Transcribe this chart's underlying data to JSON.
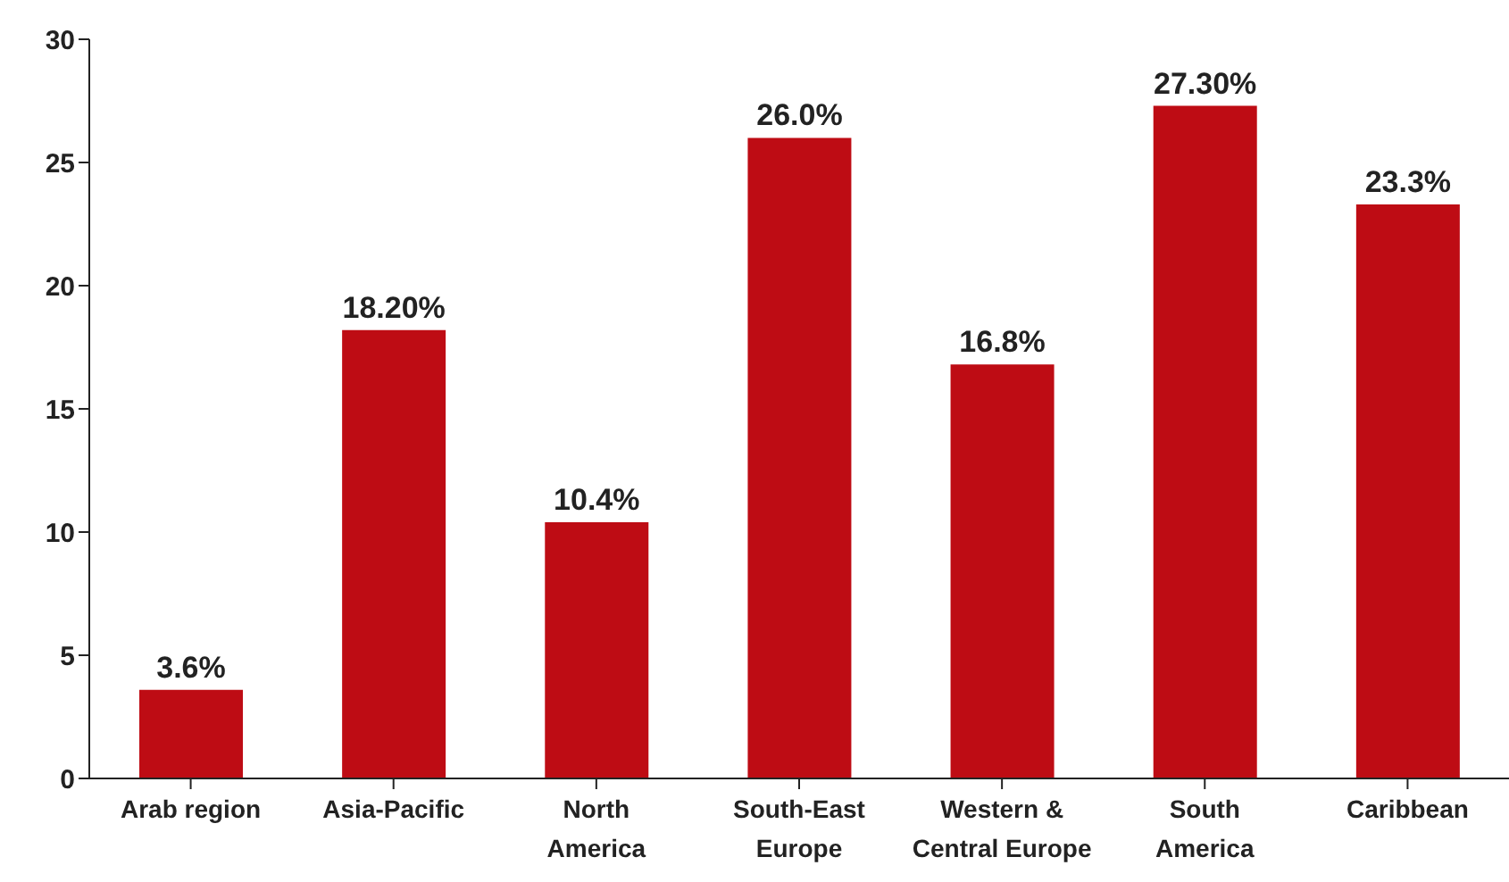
{
  "chart_data": {
    "type": "bar",
    "categories": [
      "Arab region",
      "Asia-Pacific",
      "North\nAmerica",
      "South-East\nEurope",
      "Western &\nCentral Europe",
      "South\nAmerica",
      "Caribbean"
    ],
    "values": [
      3.6,
      18.2,
      10.4,
      26.0,
      16.8,
      27.3,
      23.3
    ],
    "value_labels": [
      "3.6%",
      "18.20%",
      "10.4%",
      "26.0%",
      "16.8%",
      "27.30%",
      "23.3%"
    ],
    "color": "#be0c14",
    "ylim": [
      0,
      30
    ],
    "yticks": [
      0,
      5,
      10,
      15,
      20,
      25,
      30
    ],
    "grid": false,
    "legend": false
  }
}
